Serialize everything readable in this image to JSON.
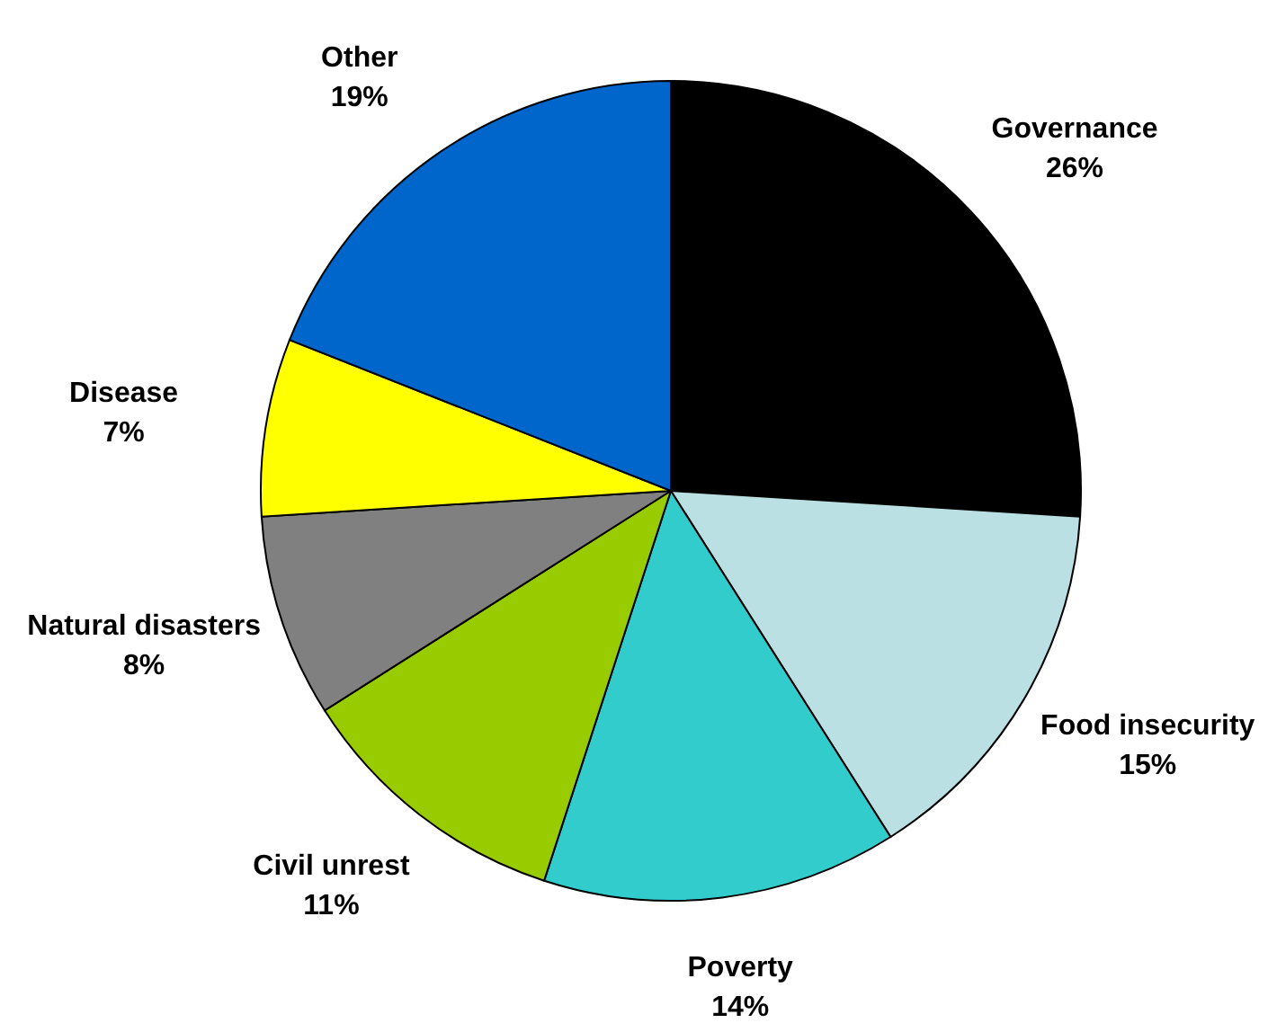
{
  "chart_data": {
    "type": "pie",
    "categories": [
      "Governance",
      "Food insecurity",
      "Poverty",
      "Civil unrest",
      "Natural disasters",
      "Disease",
      "Other"
    ],
    "values": [
      26,
      15,
      14,
      11,
      8,
      7,
      19
    ],
    "colors": [
      "#000000",
      "#bae0e3",
      "#33cccc",
      "#99cc00",
      "#808080",
      "#ffff00",
      "#0066cc"
    ],
    "value_labels": [
      "26%",
      "15%",
      "14%",
      "11%",
      "8%",
      "7%",
      "19%"
    ]
  }
}
